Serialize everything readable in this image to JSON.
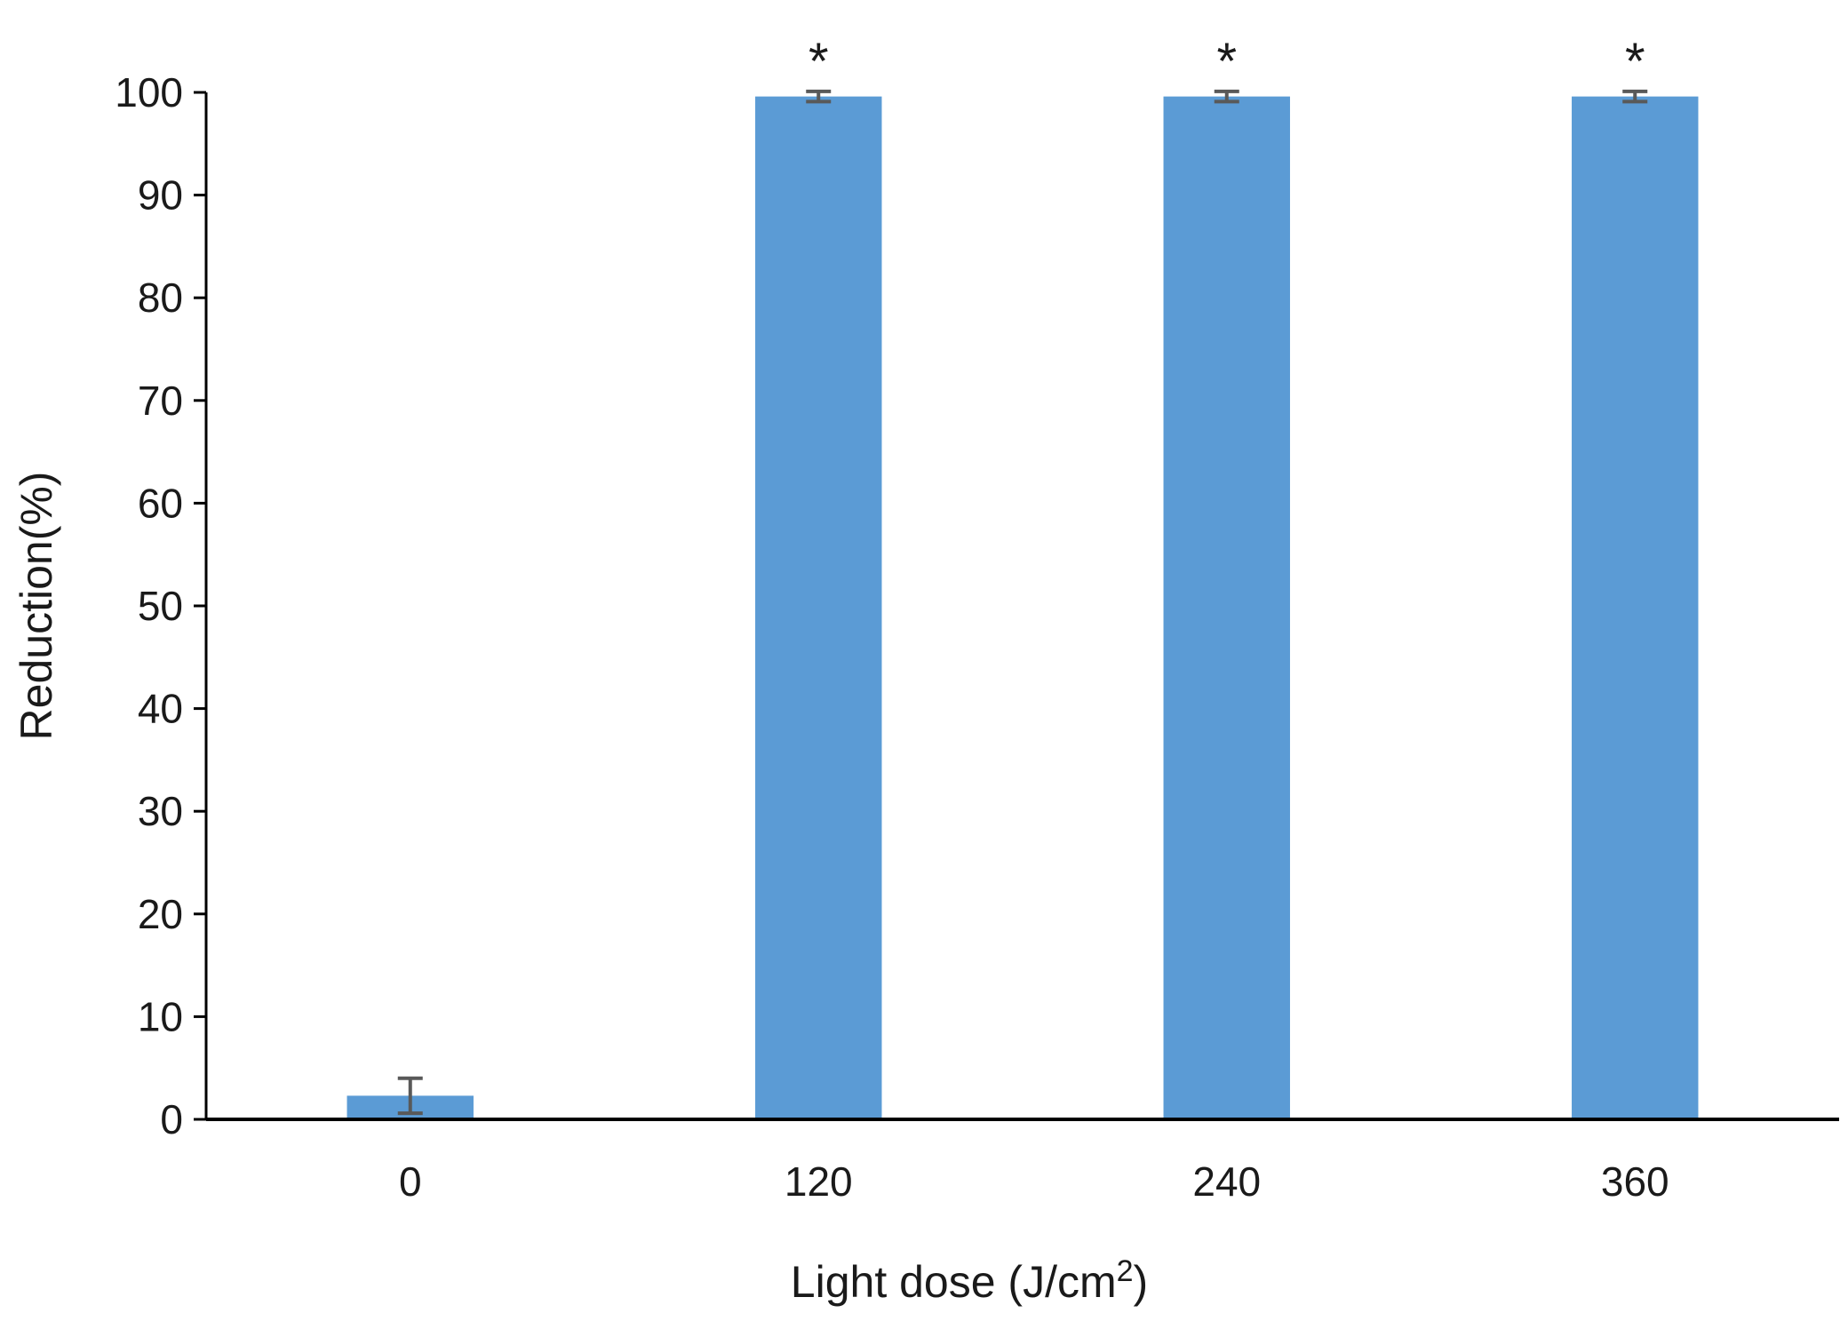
{
  "chart_data": {
    "type": "bar",
    "categories": [
      "0",
      "120",
      "240",
      "360"
    ],
    "series": [
      {
        "values": [
          2.3,
          99.6,
          99.6,
          99.6
        ],
        "error": [
          1.7,
          0.5,
          0.5,
          0.5
        ],
        "color": "#5b9bd5"
      }
    ],
    "significance": [
      "",
      "*",
      "*",
      "*"
    ],
    "xlabel": "Light dose (J/cm",
    "xlabel_superscript": "2",
    "xlabel_suffix": ")",
    "ylabel": "Reduction(%)",
    "ylim": [
      0,
      100
    ],
    "yticks": [
      "0",
      "10",
      "20",
      "30",
      "40",
      "50",
      "60",
      "70",
      "80",
      "90",
      "100"
    ],
    "grid": false,
    "legend": "none",
    "axis_color": "#000000",
    "error_bar_color": "#595959"
  }
}
